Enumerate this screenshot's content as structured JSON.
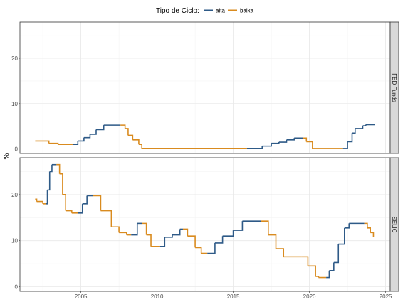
{
  "chart_data": {
    "type": "line",
    "legend": {
      "title": "Tipo de Ciclo:",
      "position": "top",
      "entries": [
        {
          "name": "alta",
          "color": "#2E5A87"
        },
        {
          "name": "baixa",
          "color": "#D98B1F"
        }
      ]
    },
    "ylabel": "%",
    "xlabel": "",
    "xlim": [
      2001.0,
      2025.3
    ],
    "x_ticks": [
      2005,
      2010,
      2015,
      2020,
      2025
    ],
    "grid": true,
    "step": true,
    "panels": [
      {
        "name": "FED Funds",
        "ylim": [
          -1,
          28
        ],
        "y_ticks": [
          0,
          10,
          20
        ],
        "points": [
          [
            2002.0,
            1.75,
            "baixa"
          ],
          [
            2002.9,
            1.25,
            "baixa"
          ],
          [
            2003.5,
            1.0,
            "baixa"
          ],
          [
            2004.5,
            1.0,
            "alta"
          ],
          [
            2004.8,
            1.75,
            "alta"
          ],
          [
            2005.2,
            2.5,
            "alta"
          ],
          [
            2005.6,
            3.25,
            "alta"
          ],
          [
            2006.0,
            4.25,
            "alta"
          ],
          [
            2006.5,
            5.25,
            "alta"
          ],
          [
            2007.6,
            5.25,
            "baixa"
          ],
          [
            2007.9,
            4.5,
            "baixa"
          ],
          [
            2008.1,
            3.0,
            "baixa"
          ],
          [
            2008.4,
            2.0,
            "baixa"
          ],
          [
            2008.8,
            1.0,
            "baixa"
          ],
          [
            2009.0,
            0.125,
            "baixa"
          ],
          [
            2015.9,
            0.125,
            "alta"
          ],
          [
            2016.9,
            0.625,
            "alta"
          ],
          [
            2017.5,
            1.25,
            "alta"
          ],
          [
            2018.0,
            1.5,
            "alta"
          ],
          [
            2018.5,
            2.0,
            "alta"
          ],
          [
            2019.0,
            2.4,
            "alta"
          ],
          [
            2019.6,
            2.4,
            "baixa"
          ],
          [
            2019.8,
            1.6,
            "baixa"
          ],
          [
            2020.2,
            0.1,
            "baixa"
          ],
          [
            2022.2,
            0.1,
            "alta"
          ],
          [
            2022.5,
            1.6,
            "alta"
          ],
          [
            2022.8,
            3.5,
            "alta"
          ],
          [
            2023.0,
            4.5,
            "alta"
          ],
          [
            2023.5,
            5.1,
            "alta"
          ],
          [
            2023.7,
            5.35,
            "alta"
          ],
          [
            2024.3,
            5.35,
            "alta"
          ]
        ]
      },
      {
        "name": "SELIC",
        "ylim": [
          -1,
          28
        ],
        "y_ticks": [
          0,
          10,
          20
        ],
        "points": [
          [
            2002.0,
            19.0,
            "baixa"
          ],
          [
            2002.1,
            18.5,
            "baixa"
          ],
          [
            2002.5,
            18.0,
            "baixa"
          ],
          [
            2002.7,
            18.0,
            "alta"
          ],
          [
            2002.8,
            21.0,
            "alta"
          ],
          [
            2002.95,
            25.0,
            "alta"
          ],
          [
            2003.1,
            26.5,
            "alta"
          ],
          [
            2003.4,
            26.5,
            "baixa"
          ],
          [
            2003.6,
            24.5,
            "baixa"
          ],
          [
            2003.8,
            20.0,
            "baixa"
          ],
          [
            2004.0,
            16.5,
            "baixa"
          ],
          [
            2004.4,
            16.0,
            "baixa"
          ],
          [
            2004.8,
            16.0,
            "alta"
          ],
          [
            2005.1,
            18.0,
            "alta"
          ],
          [
            2005.4,
            19.75,
            "alta"
          ],
          [
            2005.8,
            19.75,
            "baixa"
          ],
          [
            2006.3,
            16.5,
            "baixa"
          ],
          [
            2007.0,
            13.0,
            "baixa"
          ],
          [
            2007.5,
            11.75,
            "baixa"
          ],
          [
            2008.0,
            11.25,
            "baixa"
          ],
          [
            2008.3,
            11.25,
            "alta"
          ],
          [
            2008.7,
            13.75,
            "alta"
          ],
          [
            2009.0,
            13.75,
            "baixa"
          ],
          [
            2009.3,
            11.25,
            "baixa"
          ],
          [
            2009.6,
            8.75,
            "baixa"
          ],
          [
            2010.2,
            8.75,
            "alta"
          ],
          [
            2010.5,
            10.75,
            "alta"
          ],
          [
            2011.0,
            11.25,
            "alta"
          ],
          [
            2011.5,
            12.5,
            "alta"
          ],
          [
            2011.7,
            12.5,
            "baixa"
          ],
          [
            2012.0,
            11.0,
            "baixa"
          ],
          [
            2012.5,
            8.5,
            "baixa"
          ],
          [
            2012.9,
            7.25,
            "baixa"
          ],
          [
            2013.3,
            7.25,
            "alta"
          ],
          [
            2013.8,
            9.5,
            "alta"
          ],
          [
            2014.3,
            11.0,
            "alta"
          ],
          [
            2015.0,
            12.25,
            "alta"
          ],
          [
            2015.6,
            14.25,
            "alta"
          ],
          [
            2016.8,
            14.25,
            "baixa"
          ],
          [
            2017.3,
            11.25,
            "baixa"
          ],
          [
            2017.8,
            8.25,
            "baixa"
          ],
          [
            2018.3,
            6.5,
            "baixa"
          ],
          [
            2019.5,
            6.5,
            "baixa"
          ],
          [
            2019.9,
            4.5,
            "baixa"
          ],
          [
            2020.4,
            2.25,
            "baixa"
          ],
          [
            2020.6,
            2.0,
            "baixa"
          ],
          [
            2021.1,
            2.0,
            "alta"
          ],
          [
            2021.3,
            3.5,
            "alta"
          ],
          [
            2021.6,
            5.25,
            "alta"
          ],
          [
            2021.9,
            9.25,
            "alta"
          ],
          [
            2022.3,
            12.75,
            "alta"
          ],
          [
            2022.6,
            13.75,
            "alta"
          ],
          [
            2023.6,
            13.75,
            "baixa"
          ],
          [
            2023.8,
            12.75,
            "baixa"
          ],
          [
            2024.0,
            11.75,
            "baixa"
          ],
          [
            2024.2,
            10.75,
            "baixa"
          ]
        ]
      }
    ]
  }
}
